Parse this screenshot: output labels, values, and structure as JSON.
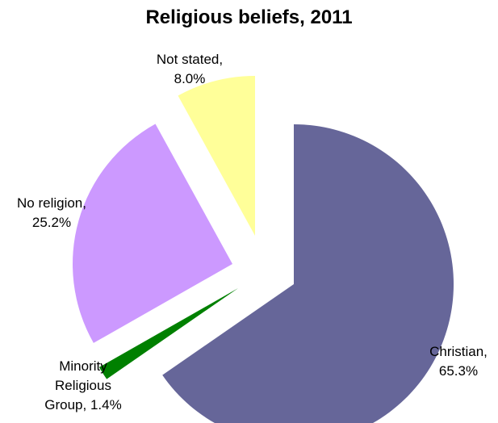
{
  "chart_data": {
    "type": "pie",
    "title": "Religious beliefs, 2011",
    "exploded": true,
    "slices": [
      {
        "name": "Christian",
        "value": 65.3,
        "label_lines": [
          "Christian,",
          "65.3%"
        ],
        "color": "#666699"
      },
      {
        "name": "Minority Religious Group",
        "value": 1.4,
        "label_lines": [
          "Minority",
          "Religious",
          "Group, 1.4%"
        ],
        "color": "#008000"
      },
      {
        "name": "No religion",
        "value": 25.2,
        "label_lines": [
          "No religion,",
          "25.2%"
        ],
        "color": "#cc99ff"
      },
      {
        "name": "Not stated",
        "value": 8.0,
        "label_lines": [
          "Not stated,",
          "8.0%"
        ],
        "color": "#ffff99"
      }
    ]
  }
}
